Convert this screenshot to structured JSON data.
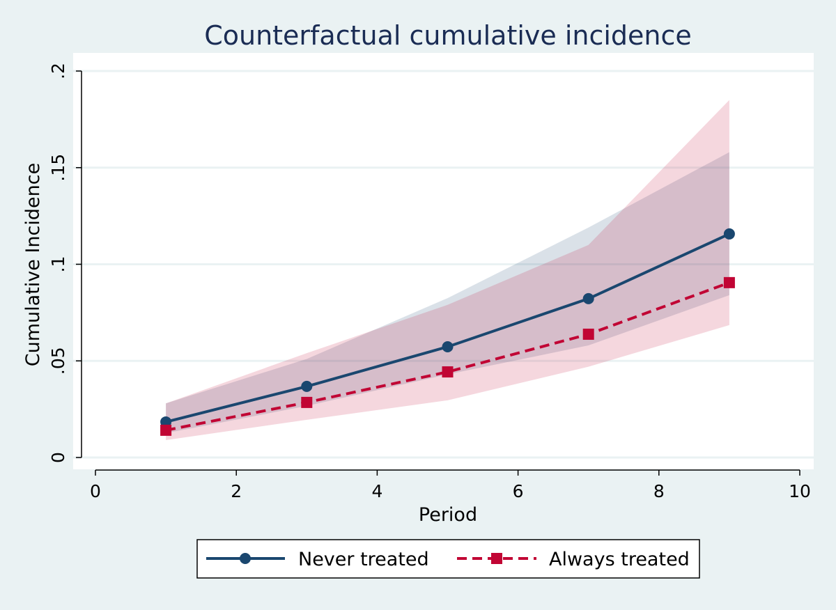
{
  "chart_data": {
    "type": "line",
    "title": "Counterfactual cumulative incidence",
    "xlabel": "Period",
    "ylabel": "Cumulative Incidence",
    "xlim": [
      0,
      10
    ],
    "ylim": [
      0,
      0.2
    ],
    "xticks": [
      0,
      2,
      4,
      6,
      8,
      10
    ],
    "xtick_labels": [
      "0",
      "2",
      "4",
      "6",
      "8",
      "10"
    ],
    "yticks": [
      0,
      0.05,
      0.1,
      0.15,
      0.2
    ],
    "ytick_labels": [
      "0",
      ".05",
      ".1",
      ".15",
      ".2"
    ],
    "grid": "horizontal",
    "legend_position": "bottom",
    "x": [
      1,
      3,
      5,
      7,
      9
    ],
    "series": [
      {
        "name": "Never treated",
        "color": "#1a476f",
        "marker": "circle",
        "line": "solid",
        "values": [
          0.0184,
          0.0368,
          0.0573,
          0.0822,
          0.1157
        ],
        "ci_lower": [
          0.0126,
          0.0267,
          0.043,
          0.058,
          0.084
        ],
        "ci_upper": [
          0.028,
          0.051,
          0.0825,
          0.119,
          0.158
        ]
      },
      {
        "name": "Always treated",
        "color": "#c10534",
        "marker": "square",
        "line": "dashed",
        "values": [
          0.0141,
          0.0285,
          0.0443,
          0.0638,
          0.0905
        ],
        "ci_lower": [
          0.009,
          0.0195,
          0.0296,
          0.047,
          0.0685
        ],
        "ci_upper": [
          0.028,
          0.054,
          0.079,
          0.11,
          0.185
        ]
      }
    ]
  }
}
